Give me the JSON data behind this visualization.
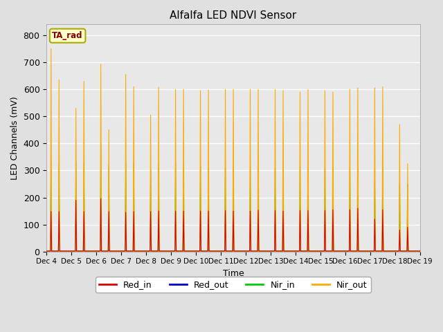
{
  "title": "Alfalfa LED NDVI Sensor",
  "xlabel": "Time",
  "ylabel": "LED Channels (mV)",
  "ylim": [
    0,
    840
  ],
  "yticks": [
    0,
    100,
    200,
    300,
    400,
    500,
    600,
    700,
    800
  ],
  "legend_label": "TA_rad",
  "legend_entries": [
    "Red_in",
    "Red_out",
    "Nir_in",
    "Nir_out"
  ],
  "legend_colors": [
    "#dd0000",
    "#0000cc",
    "#00cc00",
    "#ffaa00"
  ],
  "background_color": "#e0e0e0",
  "plot_bg_color": "#e8e8e8",
  "grid_color": "#ffffff",
  "n_days": 15,
  "x_tick_labels": [
    "Dec 4",
    "Dec 5",
    "Dec 6",
    "Dec 7",
    "Dec 8",
    "Dec 9",
    "Dec 10",
    "Dec 11",
    "Dec 12",
    "Dec 13",
    "Dec 14",
    "Dec 15",
    "Dec 16",
    "Dec 17",
    "Dec 18",
    "Dec 19"
  ],
  "nir_out_peaks1": [
    750,
    530,
    693,
    655,
    505,
    600,
    595,
    600,
    600,
    600,
    590,
    595,
    600,
    605,
    470
  ],
  "nir_out_peaks2": [
    635,
    630,
    450,
    610,
    608,
    600,
    597,
    600,
    600,
    595,
    600,
    590,
    605,
    610,
    325
  ],
  "nir_in_peaks1": [
    330,
    330,
    395,
    330,
    300,
    325,
    320,
    320,
    315,
    315,
    315,
    315,
    315,
    260,
    250
  ],
  "nir_in_peaks2": [
    325,
    325,
    320,
    330,
    325,
    320,
    315,
    315,
    320,
    315,
    310,
    315,
    310,
    315,
    250
  ],
  "red_in_peaks1": [
    148,
    190,
    195,
    145,
    148,
    150,
    150,
    152,
    150,
    152,
    152,
    152,
    155,
    120,
    80
  ],
  "red_in_peaks2": [
    148,
    148,
    148,
    148,
    150,
    150,
    150,
    150,
    153,
    150,
    152,
    155,
    160,
    155,
    90
  ],
  "red_out_peaks": [
    3,
    3,
    6,
    3,
    3,
    3,
    3,
    3,
    3,
    3,
    3,
    3,
    3,
    3,
    3
  ]
}
